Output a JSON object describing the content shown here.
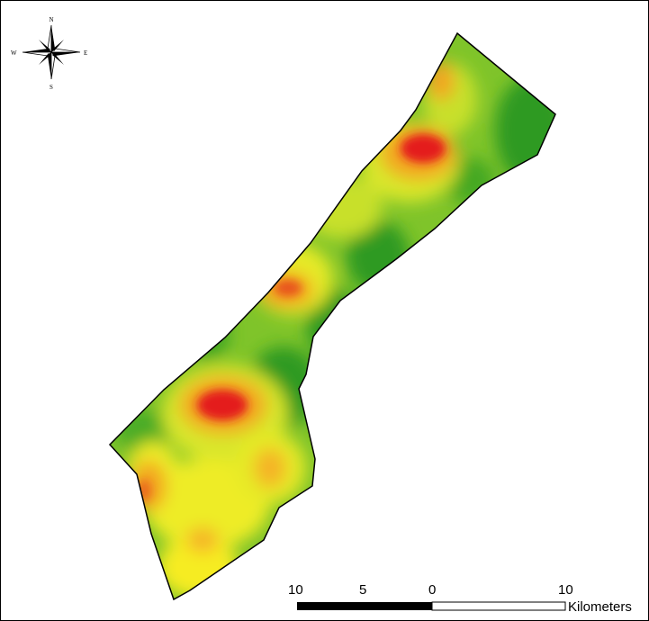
{
  "compass": {
    "north": "N",
    "south": "S",
    "east": "E",
    "west": "W"
  },
  "scalebar": {
    "tick_labels": [
      "10",
      "5",
      "0",
      "10"
    ],
    "unit": "Kilometers"
  },
  "colors": {
    "low": "#2e9a22",
    "mid_low": "#7fc42a",
    "mid": "#c8e02a",
    "mid_high": "#f6ec24",
    "high": "#f3a423",
    "very_high": "#e41a1c",
    "outline": "#000000"
  }
}
